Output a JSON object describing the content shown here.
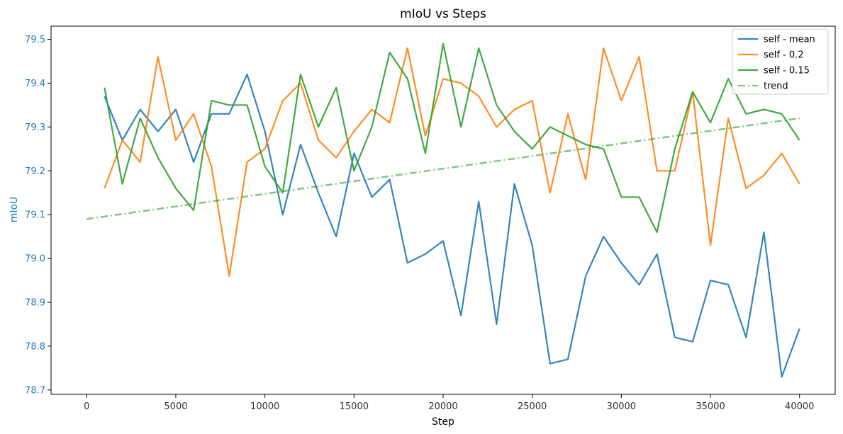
{
  "chart_data": {
    "type": "line",
    "title": "mIoU vs Steps",
    "xlabel": "Step",
    "ylabel": "mIoU",
    "xlim": [
      -2000,
      42000
    ],
    "ylim": [
      78.69,
      79.53
    ],
    "xticks": [
      0,
      5000,
      10000,
      15000,
      20000,
      25000,
      30000,
      35000,
      40000
    ],
    "yticks": [
      78.7,
      78.8,
      78.9,
      79.0,
      79.1,
      79.2,
      79.3,
      79.4,
      79.5
    ],
    "ytick_color": "#1f77b4",
    "ylabel_color": "#1f77b4",
    "grid": false,
    "legend_position": "top-right",
    "x": [
      1000,
      2000,
      3000,
      4000,
      5000,
      6000,
      7000,
      8000,
      9000,
      10000,
      11000,
      12000,
      13000,
      14000,
      15000,
      16000,
      17000,
      18000,
      19000,
      20000,
      21000,
      22000,
      23000,
      24000,
      25000,
      26000,
      27000,
      28000,
      29000,
      30000,
      31000,
      32000,
      33000,
      34000,
      35000,
      36000,
      37000,
      38000,
      39000,
      40000
    ],
    "series": [
      {
        "name": "self - mean",
        "color": "#1f77b4",
        "style": "solid",
        "values": [
          79.37,
          79.27,
          79.34,
          79.29,
          79.34,
          79.22,
          79.33,
          79.33,
          79.42,
          79.29,
          79.1,
          79.26,
          79.15,
          79.05,
          79.24,
          79.14,
          79.18,
          78.99,
          79.01,
          79.04,
          78.87,
          79.13,
          78.85,
          79.17,
          79.03,
          78.76,
          78.77,
          78.96,
          79.05,
          78.99,
          78.94,
          79.01,
          78.82,
          78.81,
          78.95,
          78.94,
          78.82,
          79.06,
          78.73,
          78.84
        ]
      },
      {
        "name": "self - 0.2",
        "color": "#ff7f0e",
        "style": "solid",
        "values": [
          79.16,
          79.27,
          79.22,
          79.46,
          79.27,
          79.33,
          79.21,
          78.96,
          79.22,
          79.25,
          79.36,
          79.4,
          79.27,
          79.23,
          79.29,
          79.34,
          79.31,
          79.48,
          79.28,
          79.41,
          79.4,
          79.37,
          79.3,
          79.34,
          79.36,
          79.15,
          79.33,
          79.18,
          79.48,
          79.36,
          79.46,
          79.2,
          79.2,
          79.38,
          79.03,
          79.32,
          79.16,
          79.19,
          79.24,
          79.17
        ]
      },
      {
        "name": "self - 0.15",
        "color": "#2ca02c",
        "style": "solid",
        "values": [
          79.39,
          79.17,
          79.32,
          79.23,
          79.16,
          79.11,
          79.36,
          79.35,
          79.35,
          79.21,
          79.15,
          79.42,
          79.3,
          79.39,
          79.2,
          79.3,
          79.47,
          79.41,
          79.24,
          79.49,
          79.3,
          79.48,
          79.35,
          79.29,
          79.25,
          79.3,
          79.28,
          79.26,
          79.25,
          79.14,
          79.14,
          79.06,
          79.25,
          79.38,
          79.31,
          79.41,
          79.33,
          79.34,
          79.33,
          79.27
        ]
      },
      {
        "name": "trend",
        "color": "#2ca02c",
        "style": "dashdot",
        "opacity": 0.6,
        "x": [
          0,
          40000
        ],
        "values": [
          79.09,
          79.32
        ]
      }
    ]
  }
}
